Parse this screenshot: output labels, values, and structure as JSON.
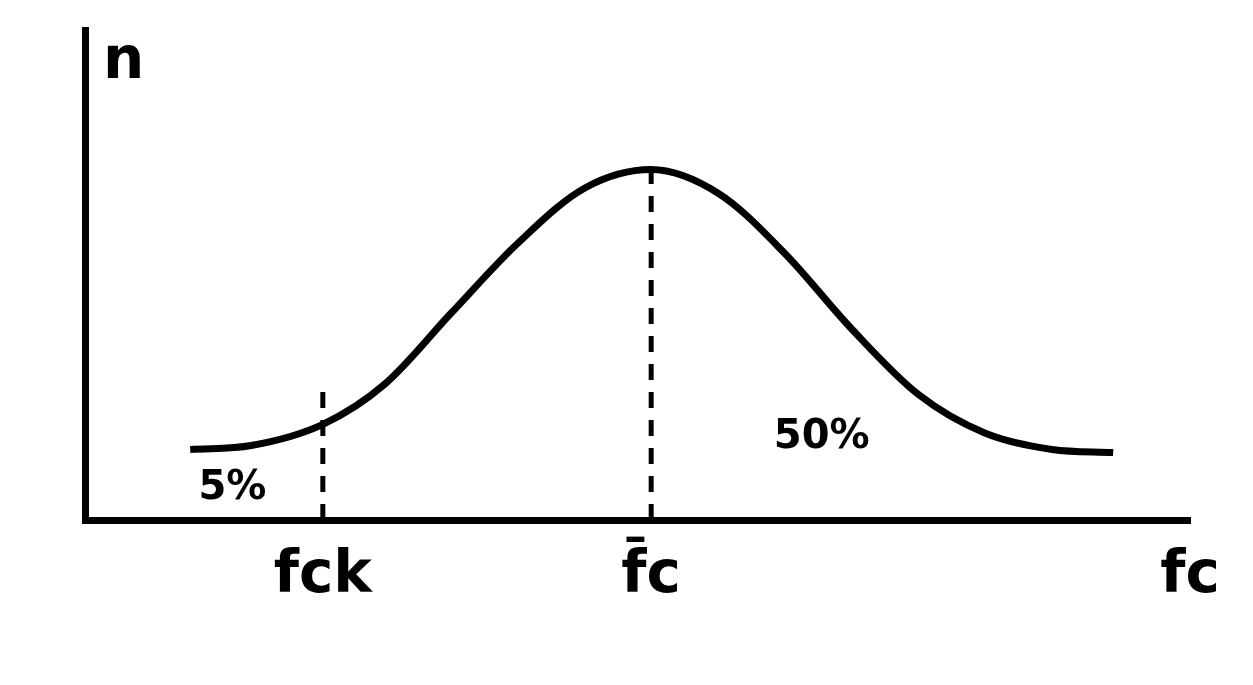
{
  "chart_data": {
    "type": "line",
    "x_label": "fc",
    "y_label": "n",
    "x": [
      10,
      15.8,
      22.6,
      28.5,
      34.8,
      41.2,
      47.5,
      53.8,
      60.2,
      66.5,
      72.9,
      79.2,
      85.5,
      91.9,
      97.7
    ],
    "values": [
      18,
      19,
      24.4,
      34.7,
      52.8,
      70.8,
      84.7,
      89.4,
      83.3,
      68,
      48.6,
      32,
      22.2,
      18,
      17.2
    ],
    "color": "#000000",
    "marker": "none",
    "line_style": "solid",
    "xlim": [
      0,
      105
    ],
    "ylim": [
      0,
      125
    ],
    "grid": false,
    "tick_labels": false,
    "reference_lines": [
      {
        "x": 22.6,
        "y": 33,
        "label": "fck"
      },
      {
        "x": 53.8,
        "y": 89.4,
        "label": "f̄c"
      }
    ],
    "annotations": [
      {
        "text": "5%",
        "x": 14,
        "y": 8
      },
      {
        "text": "50%",
        "x": 70,
        "y": 21
      }
    ]
  }
}
